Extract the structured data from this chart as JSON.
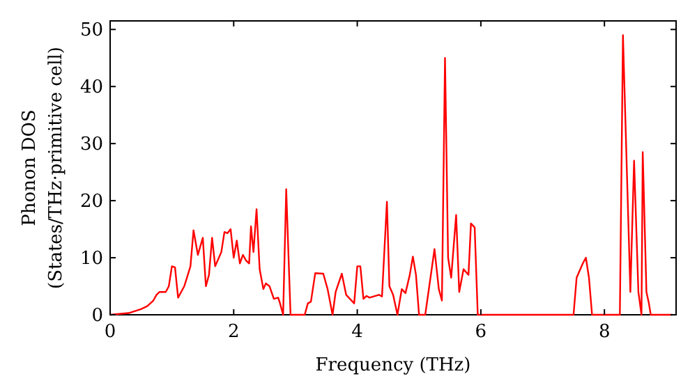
{
  "chart_data": {
    "type": "line",
    "xlabel": "Frequency (THz)",
    "ylabel": "Phonon DOS\n(States/THz·primitive cell)",
    "xlim": [
      0,
      9.16
    ],
    "ylim": [
      0,
      51.5
    ],
    "xticks": [
      0,
      2,
      4,
      6,
      8
    ],
    "yticks": [
      0,
      10,
      20,
      30,
      40,
      50
    ],
    "grid": false,
    "marker": "none",
    "line_style": "solid",
    "series": [
      {
        "color": "#ff0000",
        "x": [
          0,
          0.3,
          0.5,
          0.6,
          0.7,
          0.75,
          0.8,
          0.9,
          0.95,
          1.0,
          1.05,
          1.1,
          1.2,
          1.3,
          1.35,
          1.42,
          1.5,
          1.55,
          1.6,
          1.65,
          1.7,
          1.8,
          1.85,
          1.9,
          1.95,
          2.0,
          2.05,
          2.1,
          2.15,
          2.2,
          2.25,
          2.28,
          2.32,
          2.37,
          2.42,
          2.48,
          2.52,
          2.58,
          2.65,
          2.72,
          2.75,
          2.8,
          2.85,
          2.92,
          3.15,
          3.2,
          3.25,
          3.32,
          3.45,
          3.52,
          3.6,
          3.65,
          3.75,
          3.82,
          3.95,
          4.0,
          4.05,
          4.1,
          4.15,
          4.2,
          4.35,
          4.4,
          4.48,
          4.52,
          4.58,
          4.65,
          4.72,
          4.78,
          4.85,
          4.9,
          4.95,
          5.0,
          5.1,
          5.25,
          5.32,
          5.37,
          5.42,
          5.47,
          5.52,
          5.6,
          5.65,
          5.72,
          5.8,
          5.84,
          5.9,
          5.95,
          6.0,
          7.5,
          7.55,
          7.65,
          7.7,
          7.75,
          7.8,
          8.25,
          8.3,
          8.42,
          8.48,
          8.55,
          8.6,
          8.62,
          8.68,
          8.72,
          8.75,
          9.1
        ],
        "values": [
          0,
          0.3,
          1,
          1.5,
          2.5,
          3.5,
          4,
          4,
          5,
          8.5,
          8.3,
          3,
          5,
          8.5,
          14.8,
          10.5,
          13.5,
          5,
          7,
          13.5,
          8.5,
          11,
          14.5,
          14.3,
          15,
          10,
          13,
          9,
          10.5,
          9.5,
          9,
          15.5,
          11,
          18.5,
          8,
          4.5,
          5.5,
          5,
          2.8,
          3,
          2,
          0,
          22,
          0,
          0,
          2,
          2.3,
          7.3,
          7.2,
          4.5,
          0,
          4,
          7.2,
          3.5,
          2,
          8.5,
          8.5,
          2.8,
          3.3,
          3,
          3.5,
          3.2,
          19.8,
          5,
          3.5,
          0,
          4.5,
          3.8,
          7,
          10.2,
          7,
          0,
          0,
          11.5,
          4.5,
          2.5,
          45,
          10,
          6.5,
          17.5,
          4,
          8,
          7,
          16,
          15.3,
          0,
          0,
          0,
          6.5,
          9,
          10,
          6.5,
          0,
          0,
          49,
          4,
          27,
          4,
          0,
          28.5,
          4,
          2,
          0,
          0
        ]
      }
    ]
  }
}
